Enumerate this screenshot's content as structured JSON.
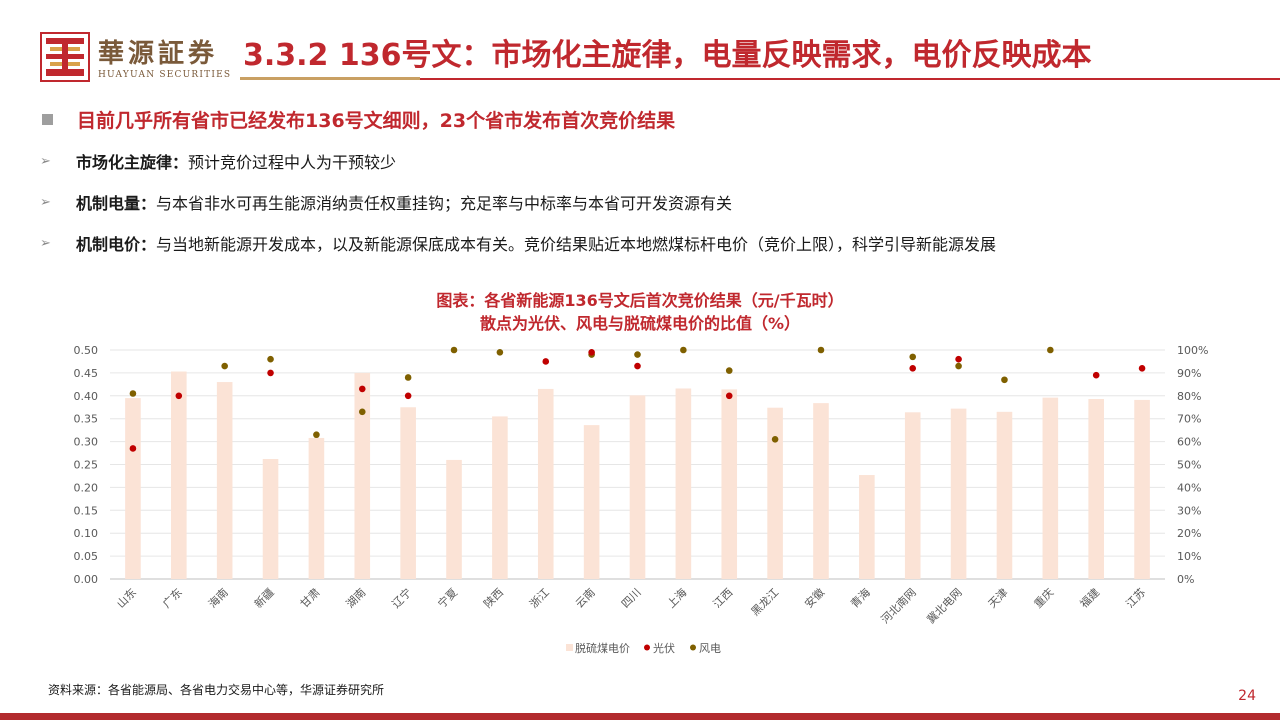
{
  "header": {
    "brand_cn": "華源証券",
    "brand_en": "HUAYUAN SECURITIES",
    "title": "3.3.2 136号文：市场化主旋律，电量反映需求，电价反映成本"
  },
  "bullets": {
    "main": "目前几乎所有省市已经发布136号文细则，23个省市发布首次竞价结果",
    "items": [
      {
        "key": "市场化主旋律：",
        "text": "预计竞价过程中人为干预较少"
      },
      {
        "key": "机制电量：",
        "text": "与本省非水可再生能源消纳责任权重挂钩；充足率与中标率与本省可开发资源有关"
      },
      {
        "key": "机制电价：",
        "text": "与当地新能源开发成本，以及新能源保底成本有关。竞价结果贴近本地燃煤标杆电价（竞价上限），科学引导新能源发展"
      }
    ]
  },
  "chart_data": {
    "type": "bar",
    "title": "图表：各省新能源136号文后首次竞价结果（元/千瓦时）",
    "subtitle": "散点为光伏、风电与脱硫煤电价的比值（%）",
    "categories": [
      "山东",
      "广东",
      "海南",
      "新疆",
      "甘肃",
      "湖南",
      "辽宁",
      "宁夏",
      "陕西",
      "浙江",
      "云南",
      "四川",
      "上海",
      "江西",
      "黑龙江",
      "安徽",
      "青海",
      "河北南网",
      "冀北电网",
      "天津",
      "重庆",
      "福建",
      "江苏"
    ],
    "y_left": {
      "min": 0,
      "max": 0.5,
      "ticks": [
        "0.00",
        "0.05",
        "0.10",
        "0.15",
        "0.20",
        "0.25",
        "0.30",
        "0.35",
        "0.40",
        "0.45",
        "0.50"
      ]
    },
    "y_right": {
      "min": 0,
      "max": 100,
      "ticks": [
        "0%",
        "10%",
        "20%",
        "30%",
        "40%",
        "50%",
        "60%",
        "70%",
        "80%",
        "90%",
        "100%"
      ]
    },
    "series": [
      {
        "name": "脱硫煤电价",
        "type": "bar",
        "axis": "left",
        "color": "#fbe3d6",
        "values": [
          0.395,
          0.453,
          0.43,
          0.262,
          0.308,
          0.45,
          0.375,
          0.26,
          0.355,
          0.415,
          0.336,
          0.401,
          0.416,
          0.414,
          0.374,
          0.384,
          0.227,
          0.364,
          0.372,
          0.365,
          0.396,
          0.393,
          0.391
        ]
      },
      {
        "name": "光伏",
        "type": "scatter",
        "axis": "right",
        "color": "#c00000",
        "values": [
          57,
          80,
          null,
          90,
          null,
          83,
          80,
          null,
          null,
          95,
          99,
          93,
          null,
          80,
          null,
          null,
          null,
          92,
          96,
          null,
          null,
          89,
          92
        ]
      },
      {
        "name": "风电",
        "type": "scatter",
        "axis": "right",
        "color": "#7f6000",
        "values": [
          81,
          null,
          93,
          96,
          63,
          73,
          88,
          100,
          99,
          null,
          98,
          98,
          100,
          91,
          61,
          100,
          null,
          97,
          93,
          87,
          100,
          null,
          null
        ]
      }
    ],
    "legend_position": "bottom",
    "grid": true
  },
  "footer": {
    "source": "资料来源：各省能源局、各省电力交易中心等，华源证券研究所",
    "page": "24"
  }
}
